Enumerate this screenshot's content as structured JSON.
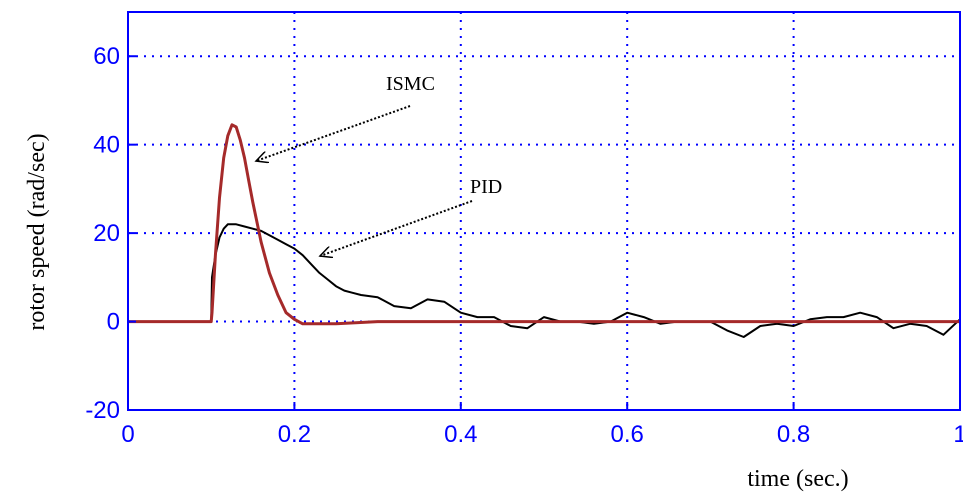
{
  "chart_data": {
    "type": "line",
    "xlabel": "time (sec.)",
    "ylabel": "rotor speed (rad/sec)",
    "xlim": [
      0,
      1
    ],
    "ylim": [
      -20,
      70
    ],
    "xticks": [
      0,
      0.2,
      0.4,
      0.6,
      0.8,
      1
    ],
    "xtick_labels": [
      "0",
      "0.2",
      "0.4",
      "0.6",
      "0.8",
      "1"
    ],
    "yticks": [
      -20,
      0,
      20,
      40,
      60
    ],
    "ytick_labels": [
      "-20",
      "0",
      "20",
      "40",
      "60"
    ],
    "grid": true,
    "axis_color": "#0000ff",
    "series": [
      {
        "name": "ISMC",
        "color": "#a52a2a",
        "x": [
          0,
          0.1,
          0.101,
          0.105,
          0.11,
          0.115,
          0.12,
          0.125,
          0.13,
          0.135,
          0.14,
          0.145,
          0.15,
          0.16,
          0.17,
          0.18,
          0.19,
          0.2,
          0.21,
          0.22,
          0.25,
          0.3,
          1
        ],
        "y": [
          0,
          0,
          2,
          15,
          28,
          37,
          42,
          44.5,
          44,
          41,
          37,
          32,
          27,
          18,
          11,
          6,
          2,
          0.5,
          -0.5,
          -0.5,
          -0.5,
          0,
          0
        ]
      },
      {
        "name": "PID",
        "color": "#000000",
        "x": [
          0,
          0.1,
          0.101,
          0.105,
          0.11,
          0.115,
          0.12,
          0.13,
          0.14,
          0.15,
          0.16,
          0.17,
          0.18,
          0.19,
          0.2,
          0.21,
          0.22,
          0.23,
          0.24,
          0.25,
          0.26,
          0.27,
          0.28,
          0.3,
          0.32,
          0.34,
          0.36,
          0.38,
          0.4,
          0.42,
          0.44,
          0.46,
          0.48,
          0.5,
          0.52,
          0.54,
          0.56,
          0.58,
          0.6,
          0.62,
          0.64,
          0.66,
          0.68,
          0.7,
          0.72,
          0.74,
          0.76,
          0.78,
          0.8,
          0.82,
          0.84,
          0.86,
          0.88,
          0.9,
          0.92,
          0.94,
          0.96,
          0.98,
          1
        ],
        "y": [
          0,
          0,
          10,
          15,
          19,
          21,
          22,
          22,
          21.5,
          21,
          20.5,
          19.5,
          18.5,
          17.5,
          16.5,
          15,
          13,
          11,
          9.5,
          8,
          7,
          6.5,
          6,
          5.5,
          3.5,
          3,
          5,
          4.5,
          2,
          1,
          1,
          -1,
          -1.5,
          1,
          0,
          0,
          -0.5,
          0,
          2,
          1,
          -0.5,
          0,
          0,
          0,
          -2,
          -3.5,
          -1,
          -0.5,
          -1,
          0.5,
          1,
          1,
          2,
          1,
          -1.5,
          -0.5,
          -1,
          -3,
          0.5
        ]
      }
    ],
    "annotations": [
      {
        "text": "ISMC",
        "target_series": "ISMC"
      },
      {
        "text": "PID",
        "target_series": "PID"
      }
    ]
  }
}
